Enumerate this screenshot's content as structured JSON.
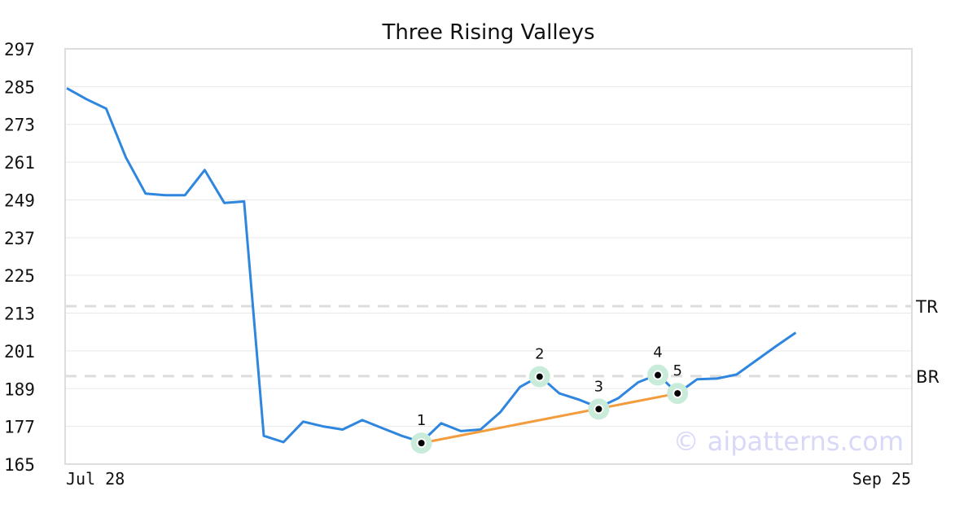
{
  "chart_data": {
    "type": "line",
    "title": "Three Rising Valleys",
    "xlabel": "",
    "ylabel": "",
    "x_tick_labels": [
      "Jul 28",
      "Sep 25"
    ],
    "yticks": [
      165,
      177,
      189,
      201,
      213,
      225,
      237,
      249,
      261,
      273,
      285,
      297
    ],
    "ylim": [
      165,
      297
    ],
    "grid": true,
    "series": [
      {
        "values": [
          284.5,
          281,
          278,
          262.5,
          251,
          250.5,
          250.5,
          258.5,
          248,
          248.5,
          174,
          172,
          178.5,
          177,
          176,
          179,
          176.5,
          174,
          172,
          178,
          175.5,
          176,
          181.5,
          189.5,
          193,
          187.5,
          185.5,
          183,
          186,
          191,
          193.5,
          187.5,
          192,
          192.2,
          193.5,
          198,
          202.5,
          206.8
        ]
      }
    ],
    "reference_lines": [
      {
        "label": "TR",
        "value": 215.2
      },
      {
        "label": "BR",
        "value": 193
      }
    ],
    "pattern_points": [
      {
        "label": "1",
        "index": 18,
        "value": 171.7
      },
      {
        "label": "2",
        "index": 24,
        "value": 192.8
      },
      {
        "label": "3",
        "index": 27,
        "value": 182.5
      },
      {
        "label": "4",
        "index": 30,
        "value": 193.3
      },
      {
        "label": "5",
        "index": 31,
        "value": 187.5
      }
    ],
    "trendline": {
      "from_point": "1",
      "to_point": "5"
    },
    "watermark": "© aipatterns.com",
    "colors": {
      "price_line": "#2e86de",
      "trendline": "#f39c3d",
      "marker_halo": "#c8ecd9",
      "reference_line": "#dddddd",
      "watermark": "#d8d8f8"
    }
  }
}
